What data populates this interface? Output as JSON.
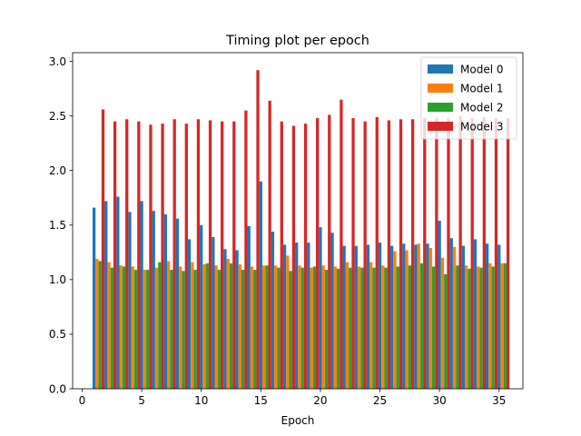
{
  "chart_data": {
    "type": "bar",
    "title": "Timing plot per epoch",
    "xlabel": "Epoch",
    "ylabel": "",
    "xlim": [
      -0.8,
      37.0
    ],
    "ylim": [
      0.0,
      3.08
    ],
    "xticks": [
      0,
      5,
      10,
      15,
      20,
      25,
      30,
      35
    ],
    "yticks": [
      0.0,
      0.5,
      1.0,
      1.5,
      2.0,
      2.5,
      3.0
    ],
    "grid": false,
    "legend_position": "top-right",
    "x": [
      1,
      2,
      3,
      4,
      5,
      6,
      7,
      8,
      9,
      10,
      11,
      12,
      13,
      14,
      15,
      16,
      17,
      18,
      19,
      20,
      21,
      22,
      23,
      24,
      25,
      26,
      27,
      28,
      29,
      30,
      31,
      32,
      33,
      34,
      35
    ],
    "series": [
      {
        "name": "Model 0",
        "color": "#1f77b4",
        "values": [
          1.66,
          1.72,
          1.76,
          1.62,
          1.72,
          1.63,
          1.6,
          1.56,
          1.37,
          1.5,
          1.39,
          1.28,
          1.27,
          1.49,
          1.9,
          1.44,
          1.32,
          1.34,
          1.34,
          1.48,
          1.43,
          1.31,
          1.31,
          1.32,
          1.34,
          1.31,
          1.33,
          1.32,
          1.33,
          1.54,
          1.38,
          1.31,
          1.37,
          1.33,
          1.32
        ]
      },
      {
        "name": "Model 1",
        "color": "#ff7f0e",
        "values": [
          1.19,
          1.16,
          1.13,
          1.12,
          1.09,
          1.11,
          1.17,
          1.12,
          1.16,
          1.14,
          1.13,
          1.19,
          1.14,
          1.12,
          1.13,
          1.13,
          1.22,
          1.13,
          1.11,
          1.13,
          1.12,
          1.16,
          1.12,
          1.16,
          1.13,
          1.26,
          1.27,
          1.33,
          1.29,
          1.2,
          1.3,
          1.13,
          1.12,
          1.15,
          1.15
        ]
      },
      {
        "name": "Model 2",
        "color": "#2ca02c",
        "values": [
          1.17,
          1.11,
          1.12,
          1.09,
          1.09,
          1.16,
          1.09,
          1.08,
          1.09,
          1.15,
          1.09,
          1.15,
          1.09,
          1.09,
          1.13,
          1.11,
          1.08,
          1.11,
          1.12,
          1.09,
          1.1,
          1.11,
          1.11,
          1.11,
          1.11,
          1.12,
          1.13,
          1.15,
          1.12,
          1.05,
          1.13,
          1.1,
          1.11,
          1.12,
          1.15
        ]
      },
      {
        "name": "Model 3",
        "color": "#d62728",
        "values": [
          2.56,
          2.45,
          2.47,
          2.45,
          2.42,
          2.43,
          2.47,
          2.43,
          2.47,
          2.46,
          2.45,
          2.45,
          2.55,
          2.92,
          2.64,
          2.45,
          2.41,
          2.43,
          2.48,
          2.51,
          2.65,
          2.48,
          2.45,
          2.49,
          2.46,
          2.47,
          2.47,
          2.48,
          2.48,
          2.48,
          2.5,
          2.48,
          2.49,
          2.48,
          2.48
        ]
      }
    ]
  }
}
